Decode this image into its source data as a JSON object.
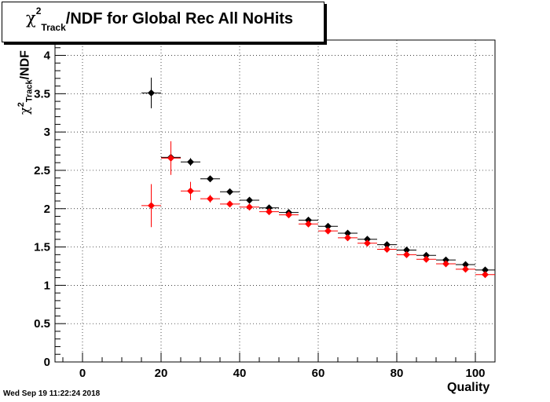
{
  "title": {
    "chi": "χ",
    "sup": "2",
    "sub": "Track",
    "rest": "/NDF for Global Rec All NoHits"
  },
  "xlabel": "Quality",
  "ylabel": {
    "chi": "χ",
    "sup": "2",
    "sub": "Track",
    "rest": "/NDF"
  },
  "timestamp": "Wed Sep 19 11:22:24 2018",
  "chart_data": {
    "type": "scatter",
    "xlim": [
      -7,
      105
    ],
    "ylim": [
      0,
      4.2
    ],
    "xticks": [
      0,
      20,
      40,
      60,
      80,
      100
    ],
    "yticks": [
      0,
      0.5,
      1,
      1.5,
      2,
      2.5,
      3,
      3.5,
      4
    ],
    "xtick_labels": [
      "0",
      "20",
      "40",
      "60",
      "80",
      "100"
    ],
    "ytick_labels": [
      "0",
      "0.5",
      "1",
      "1.5",
      "2",
      "2.5",
      "3",
      "3.5",
      "4"
    ],
    "grid": true,
    "bin_half_width": 2.5,
    "series": [
      {
        "color": "#000000",
        "x": [
          17.5,
          22.5,
          27.5,
          32.5,
          37.5,
          42.5,
          47.5,
          52.5,
          57.5,
          62.5,
          67.5,
          72.5,
          77.5,
          82.5,
          87.5,
          92.5,
          97.5,
          102.5
        ],
        "y": [
          3.51,
          2.67,
          2.61,
          2.39,
          2.22,
          2.11,
          2.01,
          1.95,
          1.85,
          1.77,
          1.68,
          1.6,
          1.53,
          1.46,
          1.39,
          1.33,
          1.27,
          1.2
        ],
        "yerr": [
          0.2,
          0.05,
          0.05,
          0.03,
          0.02,
          0.02,
          0.02,
          0.02,
          0.02,
          0.02,
          0.02,
          0.02,
          0.02,
          0.02,
          0.02,
          0.02,
          0.02,
          0.02
        ]
      },
      {
        "color": "#ff0000",
        "x": [
          17.5,
          22.5,
          27.5,
          32.5,
          37.5,
          42.5,
          47.5,
          52.5,
          57.5,
          62.5,
          67.5,
          72.5,
          77.5,
          82.5,
          87.5,
          92.5,
          97.5,
          102.5
        ],
        "y": [
          2.04,
          2.66,
          2.23,
          2.13,
          2.06,
          2.02,
          1.96,
          1.92,
          1.8,
          1.71,
          1.62,
          1.55,
          1.47,
          1.4,
          1.34,
          1.28,
          1.21,
          1.14
        ],
        "yerr": [
          0.28,
          0.22,
          0.12,
          0.05,
          0.03,
          0.02,
          0.02,
          0.02,
          0.02,
          0.02,
          0.02,
          0.02,
          0.02,
          0.02,
          0.02,
          0.02,
          0.02,
          0.02
        ]
      }
    ]
  }
}
